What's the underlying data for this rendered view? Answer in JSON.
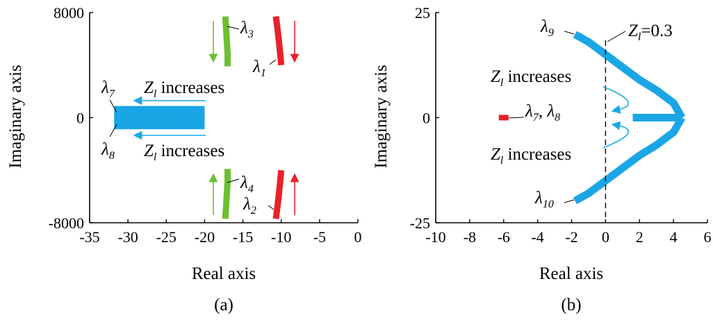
{
  "chart_data": [
    {
      "id": "a",
      "type": "scatter",
      "panel_label": "(a)",
      "xlabel": "Real axis",
      "ylabel": "Imaginary axis",
      "xlim": [
        -35,
        0
      ],
      "ylim": [
        -8000,
        8000
      ],
      "xticks": [
        "-35",
        "-30",
        "-25",
        "-20",
        "-15",
        "-10",
        "-5",
        "0"
      ],
      "yticks": [
        "-8000",
        "0",
        "8000"
      ],
      "xtick_values": [
        -35,
        -30,
        -25,
        -20,
        -15,
        -10,
        -5,
        0
      ],
      "ytick_values": [
        -8000,
        0,
        8000
      ],
      "colors": {
        "red": "#e8212a",
        "green": "#6cc02f",
        "blue": "#1aa6e6"
      },
      "series": [
        {
          "color": "red",
          "points": [
            [
              -10.7,
              7700
            ],
            [
              -10.5,
              6800
            ],
            [
              -10.3,
              5800
            ],
            [
              -10.15,
              4900
            ],
            [
              -10.0,
              4000
            ]
          ]
        },
        {
          "color": "red",
          "points": [
            [
              -10.7,
              -7700
            ],
            [
              -10.5,
              -6800
            ],
            [
              -10.3,
              -5800
            ],
            [
              -10.15,
              -4900
            ],
            [
              -10.0,
              -4000
            ]
          ]
        },
        {
          "color": "green",
          "points": [
            [
              -17.3,
              7700
            ],
            [
              -17.2,
              6800
            ],
            [
              -17.1,
              5800
            ],
            [
              -17.0,
              4900
            ],
            [
              -17.0,
              3900
            ]
          ]
        },
        {
          "color": "green",
          "points": [
            [
              -17.3,
              -7700
            ],
            [
              -17.2,
              -6800
            ],
            [
              -17.1,
              -5800
            ],
            [
              -17.0,
              -4900
            ],
            [
              -17.0,
              -3900
            ]
          ]
        },
        {
          "color": "blue",
          "points": [
            [
              -31.8,
              300
            ],
            [
              -30,
              300
            ],
            [
              -27.5,
              300
            ],
            [
              -25,
              300
            ],
            [
              -22.5,
              300
            ],
            [
              -20,
              300
            ]
          ]
        },
        {
          "color": "blue",
          "points": [
            [
              -31.8,
              -300
            ],
            [
              -30,
              -300
            ],
            [
              -27.5,
              -300
            ],
            [
              -25,
              -300
            ],
            [
              -22.5,
              -300
            ],
            [
              -20,
              -300
            ]
          ]
        }
      ],
      "annotations": [
        {
          "text": "λ3",
          "base": "λ",
          "sub": "3"
        },
        {
          "text": "λ1",
          "base": "λ",
          "sub": "1"
        },
        {
          "text": "λ4",
          "base": "λ",
          "sub": "4"
        },
        {
          "text": "λ2",
          "base": "λ",
          "sub": "2"
        },
        {
          "text": "λ7",
          "base": "λ",
          "sub": "7"
        },
        {
          "text": "λ8",
          "base": "λ",
          "sub": "8"
        },
        {
          "text": "Zl increases",
          "base": "Z",
          "sub": "l",
          "rest": " increases"
        },
        {
          "text": "Zl increases",
          "base": "Z",
          "sub": "l",
          "rest": " increases"
        }
      ]
    },
    {
      "id": "b",
      "type": "scatter",
      "panel_label": "(b)",
      "xlabel": "Real axis",
      "ylabel": "Imaginary axis",
      "xlim": [
        -10,
        6
      ],
      "ylim": [
        -25,
        25
      ],
      "xticks": [
        "-10",
        "-8",
        "-6",
        "-4",
        "-2",
        "0",
        "2",
        "4",
        "6"
      ],
      "yticks": [
        "-25",
        "0",
        "25"
      ],
      "xtick_values": [
        -10,
        -8,
        -6,
        -4,
        -2,
        0,
        2,
        4,
        6
      ],
      "ytick_values": [
        -25,
        0,
        25
      ],
      "colors": {
        "red": "#e8212a",
        "blue": "#1aa6e6"
      },
      "series": [
        {
          "color": "blue",
          "points": [
            [
              -1.8,
              19.8
            ],
            [
              -1.0,
              18.0
            ],
            [
              0.0,
              15.0
            ],
            [
              1.0,
              12.0
            ],
            [
              2.0,
              9.0
            ],
            [
              3.0,
              6.5
            ],
            [
              4.0,
              3.5
            ],
            [
              4.5,
              0
            ]
          ]
        },
        {
          "color": "blue",
          "points": [
            [
              -1.8,
              -19.8
            ],
            [
              -1.0,
              -18.0
            ],
            [
              0.0,
              -15.0
            ],
            [
              1.0,
              -12.0
            ],
            [
              2.0,
              -9.0
            ],
            [
              3.0,
              -6.5
            ],
            [
              4.0,
              -3.5
            ],
            [
              4.5,
              0
            ]
          ]
        },
        {
          "color": "blue",
          "points": [
            [
              1.6,
              0
            ],
            [
              2.5,
              0
            ],
            [
              3.5,
              0
            ],
            [
              4.3,
              0
            ]
          ]
        },
        {
          "color": "red",
          "points": [
            [
              -6.0,
              0
            ]
          ]
        }
      ],
      "dashed_line_x": 0,
      "annotations": [
        {
          "text": "λ9",
          "base": "λ",
          "sub": "9"
        },
        {
          "text": "λ10",
          "base": "λ",
          "sub": "10"
        },
        {
          "text": "λ7, λ8",
          "base": "λ",
          "sub": "7",
          "rest": ", λ",
          "sub2": "8"
        },
        {
          "text": "Zl=0.3",
          "base": "Z",
          "sub": "l",
          "rest": "=0.3"
        },
        {
          "text": "Zl increases",
          "base": "Z",
          "sub": "l",
          "rest": " increases"
        },
        {
          "text": "Zl increases",
          "base": "Z",
          "sub": "l",
          "rest": " increases"
        }
      ]
    }
  ]
}
